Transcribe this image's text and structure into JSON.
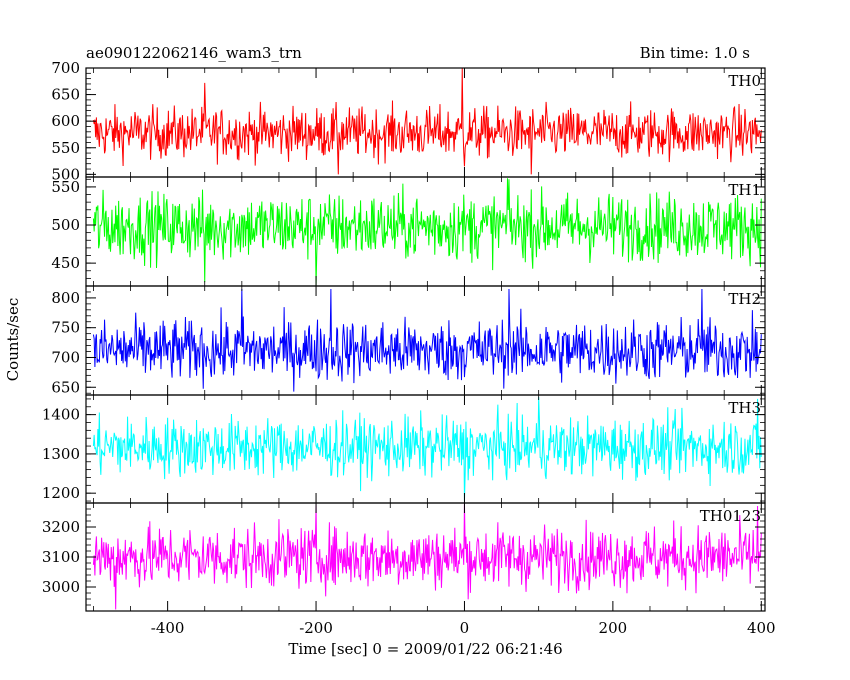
{
  "header": {
    "title": "ae090122062146_wam3_trn",
    "bin_time": "Bin time: 1.0 s"
  },
  "chart_data": {
    "type": "line",
    "xlabel": "Time [sec] 0 = 2009/01/22 06:21:46",
    "ylabel": "Counts/sec",
    "xlim": [
      -510,
      405
    ],
    "xticks": [
      -400,
      -200,
      0,
      200,
      400
    ],
    "x_range": [
      -500,
      400
    ],
    "grid": false,
    "panels": [
      {
        "name": "TH0",
        "color": "#ff0000",
        "ylim": [
          495,
          700
        ],
        "yticks": [
          500,
          550,
          600,
          650,
          700
        ],
        "ytick_labels": [
          "500",
          "550",
          "600",
          "650",
          "700"
        ],
        "mean": 578,
        "noise": 24,
        "bursts": [
          {
            "x": -3,
            "y": 700
          },
          {
            "x": 0,
            "y": 515
          },
          {
            "x": -170,
            "y": 500
          },
          {
            "x": 90,
            "y": 500
          },
          {
            "x": -350,
            "y": 672
          }
        ]
      },
      {
        "name": "TH1",
        "color": "#00ff00",
        "ylim": [
          420,
          563
        ],
        "yticks": [
          450,
          500,
          550
        ],
        "ytick_labels": [
          "450",
          "500",
          "550"
        ],
        "mean": 498,
        "noise": 22,
        "bursts": [
          {
            "x": -200,
            "y": 420
          },
          {
            "x": 60,
            "y": 560
          },
          {
            "x": -350,
            "y": 425
          }
        ]
      },
      {
        "name": "TH2",
        "color": "#0000ff",
        "ylim": [
          637,
          820
        ],
        "yticks": [
          650,
          700,
          750,
          800
        ],
        "ytick_labels": [
          "650",
          "700",
          "750",
          "800"
        ],
        "mean": 712,
        "noise": 26,
        "bursts": [
          {
            "x": -300,
            "y": 815
          },
          {
            "x": -180,
            "y": 815
          },
          {
            "x": 320,
            "y": 815
          },
          {
            "x": 60,
            "y": 815
          }
        ]
      },
      {
        "name": "TH3",
        "color": "#00ffff",
        "ylim": [
          1175,
          1450
        ],
        "yticks": [
          1200,
          1300,
          1400
        ],
        "ytick_labels": [
          "1200",
          "1300",
          "1400"
        ],
        "mean": 1318,
        "noise": 38,
        "bursts": [
          {
            "x": 0,
            "y": 1180
          },
          {
            "x": 100,
            "y": 1445
          },
          {
            "x": 395,
            "y": 1440
          }
        ]
      },
      {
        "name": "TH0123",
        "color": "#ff00ff",
        "ylim": [
          2920,
          3280
        ],
        "yticks": [
          3000,
          3100,
          3200
        ],
        "ytick_labels": [
          "3000",
          "3100",
          "3200"
        ],
        "mean": 3100,
        "noise": 52,
        "bursts": [
          {
            "x": 0,
            "y": 3280
          },
          {
            "x": -470,
            "y": 2925
          },
          {
            "x": 395,
            "y": 3270
          },
          {
            "x": -200,
            "y": 3275
          }
        ]
      }
    ]
  }
}
